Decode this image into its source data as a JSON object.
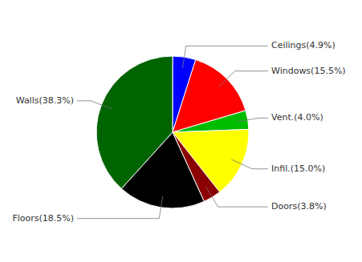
{
  "chart_data": {
    "type": "pie",
    "categories": [
      "Ceilings(4.9%)",
      "Windows(15.5%)",
      "Vent.(4.0%)",
      "Infil.(15.0%)",
      "Doors(3.8%)",
      "Floors(18.5%)",
      "Walls(38.3%)"
    ],
    "values": [
      4.9,
      15.5,
      4.0,
      15.0,
      3.8,
      18.5,
      38.3
    ],
    "colors": [
      "#0000FF",
      "#FF0000",
      "#00BB00",
      "#FFFF00",
      "#8B0000",
      "#000000",
      "#006400"
    ]
  }
}
